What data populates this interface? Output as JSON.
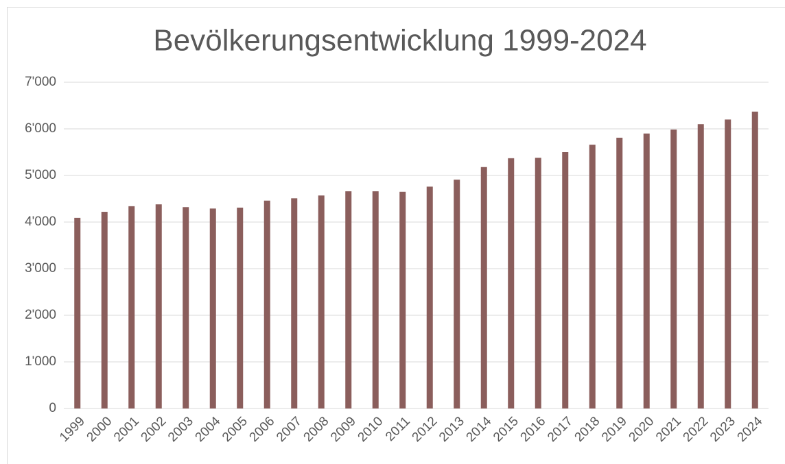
{
  "chart_data": {
    "type": "bar",
    "title": "Bevölkerungsentwicklung 1999-2024",
    "categories": [
      "1999",
      "2000",
      "2001",
      "2002",
      "2003",
      "2004",
      "2005",
      "2006",
      "2007",
      "2008",
      "2009",
      "2010",
      "2011",
      "2012",
      "2013",
      "2014",
      "2015",
      "2016",
      "2017",
      "2018",
      "2019",
      "2020",
      "2021",
      "2022",
      "2023",
      "2024"
    ],
    "values": [
      4090,
      4220,
      4340,
      4380,
      4320,
      4290,
      4310,
      4460,
      4510,
      4570,
      4660,
      4660,
      4650,
      4760,
      4910,
      5180,
      5370,
      5380,
      5500,
      5660,
      5810,
      5900,
      5985,
      6100,
      6200,
      6370
    ],
    "color": "#8b5e5c",
    "ylim": [
      0,
      7000
    ],
    "yticks": [
      0,
      {
        "value": 1000,
        "label": "1'000"
      },
      {
        "value": 2000,
        "label": "2'000"
      },
      {
        "value": 3000,
        "label": "3'000"
      },
      {
        "value": 4000,
        "label": "4'000"
      },
      {
        "value": 5000,
        "label": "5'000"
      },
      {
        "value": 6000,
        "label": "6'000"
      },
      {
        "value": 7000,
        "label": "7'000"
      }
    ],
    "grid": true
  }
}
